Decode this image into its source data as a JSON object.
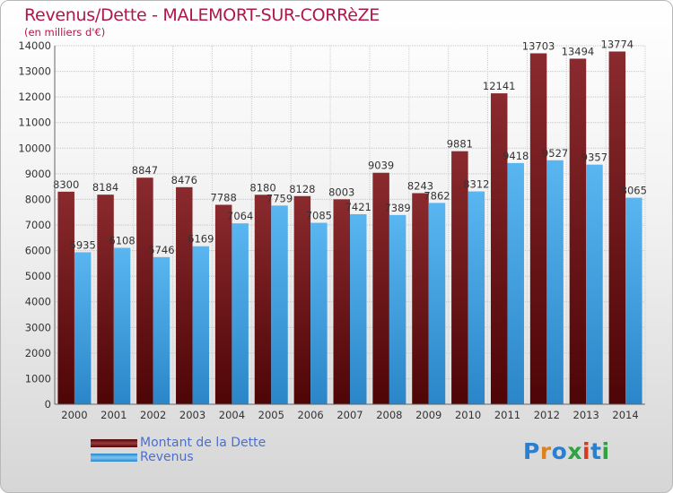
{
  "header": {
    "title": "Revenus/Dette - MALEMORT-SUR-CORRèZE",
    "subtitle": "(en milliers d'€)"
  },
  "logo": {
    "letters": [
      "P",
      "r",
      "o",
      "x",
      "i",
      "t",
      "i"
    ],
    "colors": [
      "#2a7fd1",
      "#e0821b",
      "#2a7fd1",
      "#2ea33f",
      "#d83a1e",
      "#2a7fd1",
      "#2ea33f"
    ]
  },
  "colors": {
    "dette": "#7a1a1e",
    "revenus": "#3aa2e6",
    "title": "#b0164e",
    "legend_text": "#4a6fd0"
  },
  "chart_data": {
    "type": "bar",
    "categories": [
      "2000",
      "2001",
      "2002",
      "2003",
      "2004",
      "2005",
      "2006",
      "2007",
      "2008",
      "2009",
      "2010",
      "2011",
      "2012",
      "2013",
      "2014"
    ],
    "series": [
      {
        "name": "Montant de la Dette",
        "values": [
          8300,
          8184,
          8847,
          8476,
          7788,
          8180,
          8128,
          8003,
          9039,
          8243,
          9881,
          12141,
          13703,
          13494,
          13774
        ]
      },
      {
        "name": "Revenus",
        "values": [
          5935,
          6108,
          5746,
          6169,
          7064,
          7759,
          7085,
          7421,
          7389,
          7862,
          8312,
          9418,
          9527,
          9357,
          8065
        ]
      }
    ],
    "ylim": [
      0,
      14000
    ],
    "yticks": [
      0,
      1000,
      2000,
      3000,
      4000,
      5000,
      6000,
      7000,
      8000,
      9000,
      10000,
      11000,
      12000,
      13000,
      14000
    ],
    "grid": true,
    "legend_position": "bottom-left"
  }
}
